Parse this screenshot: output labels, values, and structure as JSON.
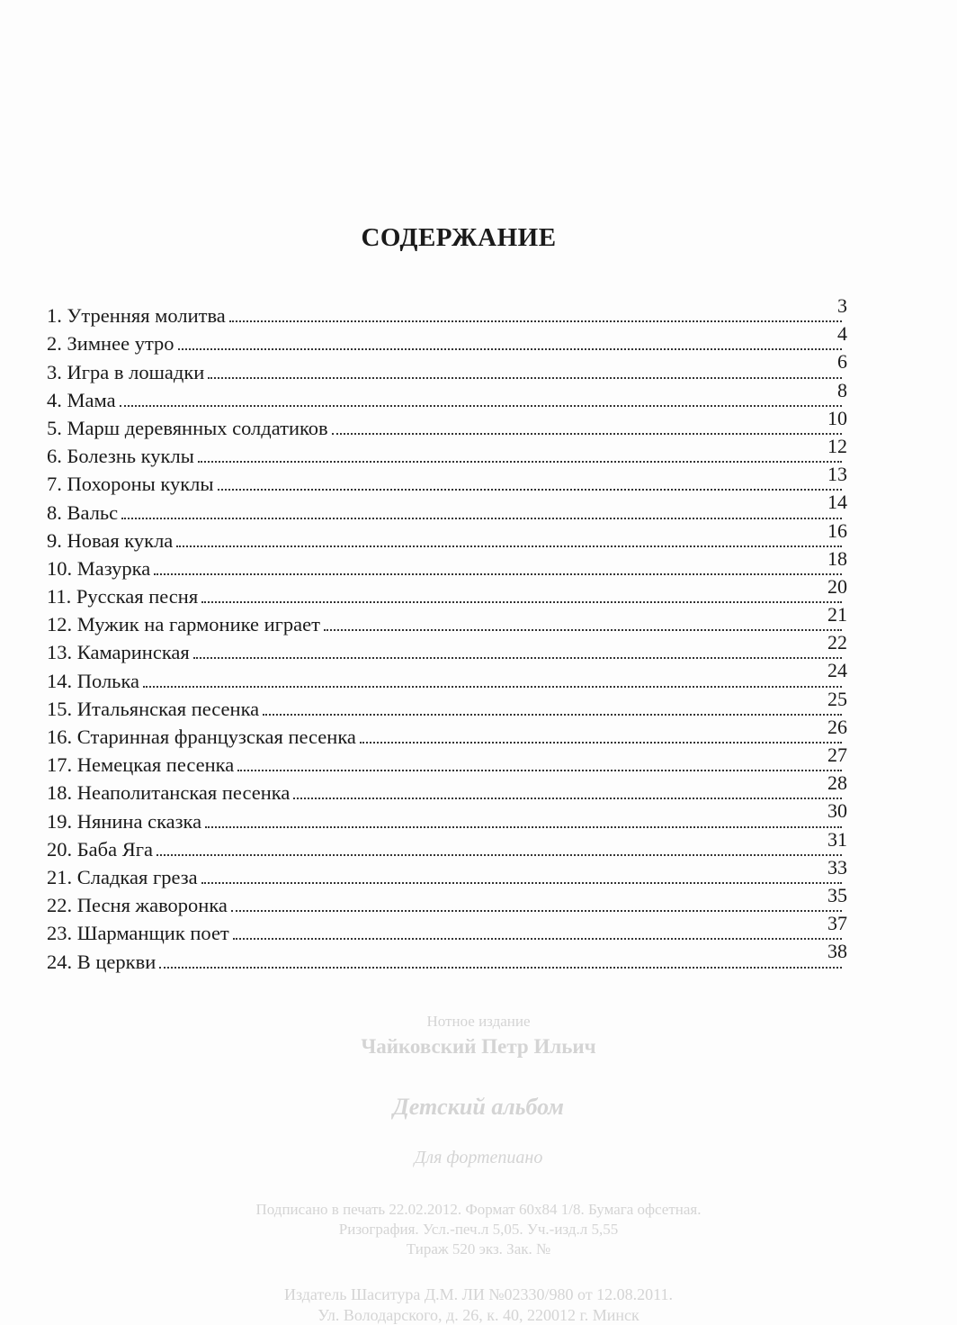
{
  "title": "СОДЕРЖАНИЕ",
  "entries": [
    {
      "label": "1. Утренняя молитва",
      "page": "3"
    },
    {
      "label": "2. Зимнее утро",
      "page": "4"
    },
    {
      "label": "3. Игра в лошадки",
      "page": "6"
    },
    {
      "label": "4. Мама",
      "page": "8"
    },
    {
      "label": "5. Марш деревянных солдатиков",
      "page": "10"
    },
    {
      "label": "6. Болезнь куклы",
      "page": "12"
    },
    {
      "label": "7. Похороны куклы",
      "page": "13"
    },
    {
      "label": "8. Вальс",
      "page": "14"
    },
    {
      "label": "9. Новая кукла",
      "page": "16"
    },
    {
      "label": "10. Мазурка",
      "page": "18"
    },
    {
      "label": "11. Русская песня",
      "page": "20"
    },
    {
      "label": "12. Мужик на гармонике играет",
      "page": "21"
    },
    {
      "label": "13. Камаринская",
      "page": "22"
    },
    {
      "label": "14. Полька",
      "page": "24"
    },
    {
      "label": "15. Итальянская песенка",
      "page": "25"
    },
    {
      "label": "16. Старинная французская песенка",
      "page": "26"
    },
    {
      "label": "17. Немецкая песенка",
      "page": "27"
    },
    {
      "label": "18. Неаполитанская песенка",
      "page": "28"
    },
    {
      "label": "19. Нянина сказка",
      "page": "30"
    },
    {
      "label": "20. Баба Яга",
      "page": "31"
    },
    {
      "label": "21. Сладкая греза",
      "page": "33"
    },
    {
      "label": "22. Песня жаворонка",
      "page": "35"
    },
    {
      "label": "23. Шарманщик поет",
      "page": "37"
    },
    {
      "label": "24. В церкви",
      "page": "38"
    }
  ],
  "imprint": {
    "edition": "Нотное издание",
    "author": "Чайковский Петр Ильич",
    "work": "Детский альбом",
    "instrument": "Для фортепиано",
    "print_line1": "Подписано в печать 22.02.2012. Формат 60x84 1/8. Бумага офсетная.",
    "print_line2": "Ризография. Усл.-печ.л 5,05. Уч.-изд.л 5,55",
    "print_line3": "Тираж 520 экз. Зак. №",
    "publisher_line1": "Издатель Шаситура Д.М. ЛИ №02330/980 от 12.08.2011.",
    "publisher_line2": "Ул. Володарского, д. 26, к. 40, 220012 г. Минск"
  }
}
